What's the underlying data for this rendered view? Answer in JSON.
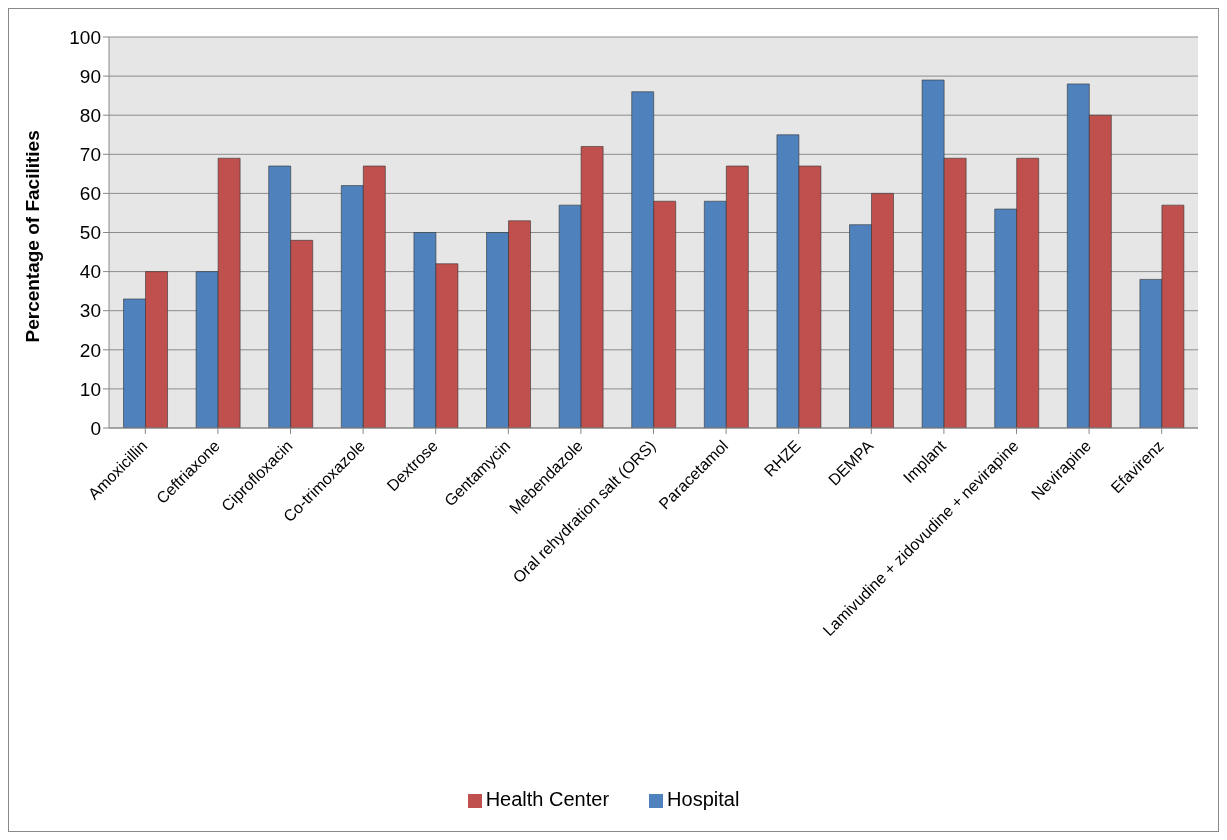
{
  "chart_data": {
    "type": "bar",
    "ylabel": "Percentage of Facilities",
    "categories": [
      "Amoxicillin",
      "Ceftriaxone",
      "Ciprofloxacin",
      "Co-trimoxazole",
      "Dextrose",
      "Gentamycin",
      "Mebendazole",
      "Oral rehydration salt (ORS)",
      "Paracetamol",
      "RHZE",
      "DEMPA",
      "Implant",
      "Lamivudine + zidovudine + nevirapine",
      "Nevirapine",
      "Efavirenz"
    ],
    "series": [
      {
        "name": "Hospital",
        "color": "#4f81bd",
        "values": [
          33,
          40,
          67,
          62,
          50,
          50,
          57,
          86,
          58,
          75,
          52,
          89,
          56,
          88,
          38
        ]
      },
      {
        "name": "Health Center",
        "color": "#c0504d",
        "values": [
          40,
          69,
          48,
          67,
          42,
          53,
          72,
          58,
          67,
          67,
          60,
          69,
          69,
          80,
          57
        ]
      }
    ],
    "ylim": [
      0,
      100
    ],
    "yticks": [
      0,
      10,
      20,
      30,
      40,
      50,
      60,
      70,
      80,
      90,
      100
    ],
    "grid": "y",
    "legend": "bottom"
  }
}
